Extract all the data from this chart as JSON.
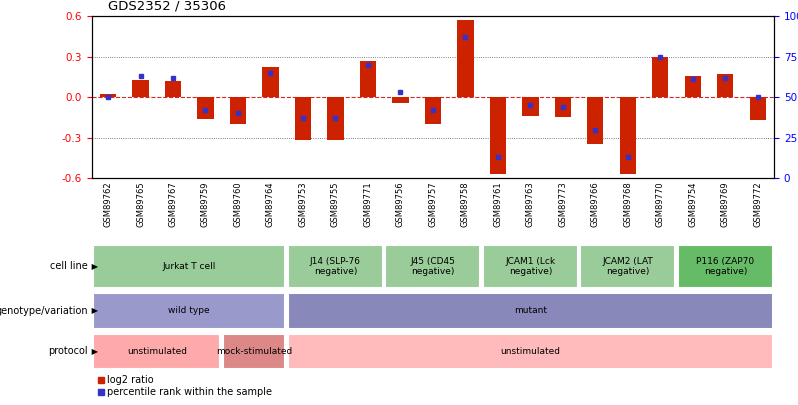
{
  "title": "GDS2352 / 35306",
  "samples": [
    "GSM89762",
    "GSM89765",
    "GSM89767",
    "GSM89759",
    "GSM89760",
    "GSM89764",
    "GSM89753",
    "GSM89755",
    "GSM89771",
    "GSM89756",
    "GSM89757",
    "GSM89758",
    "GSM89761",
    "GSM89763",
    "GSM89773",
    "GSM89766",
    "GSM89768",
    "GSM89770",
    "GSM89754",
    "GSM89769",
    "GSM89772"
  ],
  "log2_ratio": [
    0.02,
    0.13,
    0.12,
    -0.16,
    -0.2,
    0.22,
    -0.32,
    -0.32,
    0.27,
    -0.04,
    -0.2,
    0.57,
    -0.57,
    -0.14,
    -0.15,
    -0.35,
    -0.57,
    0.3,
    0.16,
    0.17,
    -0.17
  ],
  "percentile_rank": [
    0.5,
    0.63,
    0.62,
    0.42,
    0.4,
    0.65,
    0.37,
    0.37,
    0.7,
    0.53,
    0.42,
    0.87,
    0.13,
    0.45,
    0.44,
    0.3,
    0.13,
    0.75,
    0.61,
    0.62,
    0.5
  ],
  "ylim": [
    -0.6,
    0.6
  ],
  "yticks_left": [
    -0.6,
    -0.3,
    0.0,
    0.3,
    0.6
  ],
  "yticks_right": [
    0,
    25,
    50,
    75,
    100
  ],
  "ytick_right_labels": [
    "0",
    "25",
    "50",
    "75",
    "100%"
  ],
  "bar_color": "#cc2200",
  "dot_color": "#3333cc",
  "zero_line_color": "#cc0000",
  "cell_line_groups": [
    {
      "label": "Jurkat T cell",
      "start": 0,
      "end": 6,
      "color": "#99cc99"
    },
    {
      "label": "J14 (SLP-76\nnegative)",
      "start": 6,
      "end": 9,
      "color": "#99cc99"
    },
    {
      "label": "J45 (CD45\nnegative)",
      "start": 9,
      "end": 12,
      "color": "#99cc99"
    },
    {
      "label": "JCAM1 (Lck\nnegative)",
      "start": 12,
      "end": 15,
      "color": "#99cc99"
    },
    {
      "label": "JCAM2 (LAT\nnegative)",
      "start": 15,
      "end": 18,
      "color": "#99cc99"
    },
    {
      "label": "P116 (ZAP70\nnegative)",
      "start": 18,
      "end": 21,
      "color": "#66bb66"
    }
  ],
  "genotype_groups": [
    {
      "label": "wild type",
      "start": 0,
      "end": 6,
      "color": "#9999cc"
    },
    {
      "label": "mutant",
      "start": 6,
      "end": 21,
      "color": "#8888bb"
    }
  ],
  "protocol_groups": [
    {
      "label": "unstimulated",
      "start": 0,
      "end": 4,
      "color": "#ffaaaa"
    },
    {
      "label": "mock-stimulated",
      "start": 4,
      "end": 6,
      "color": "#dd8888"
    },
    {
      "label": "unstimulated",
      "start": 6,
      "end": 21,
      "color": "#ffbbbb"
    }
  ],
  "legend": [
    {
      "label": "log2 ratio",
      "color": "#cc2200"
    },
    {
      "label": "percentile rank within the sample",
      "color": "#3333cc"
    }
  ]
}
